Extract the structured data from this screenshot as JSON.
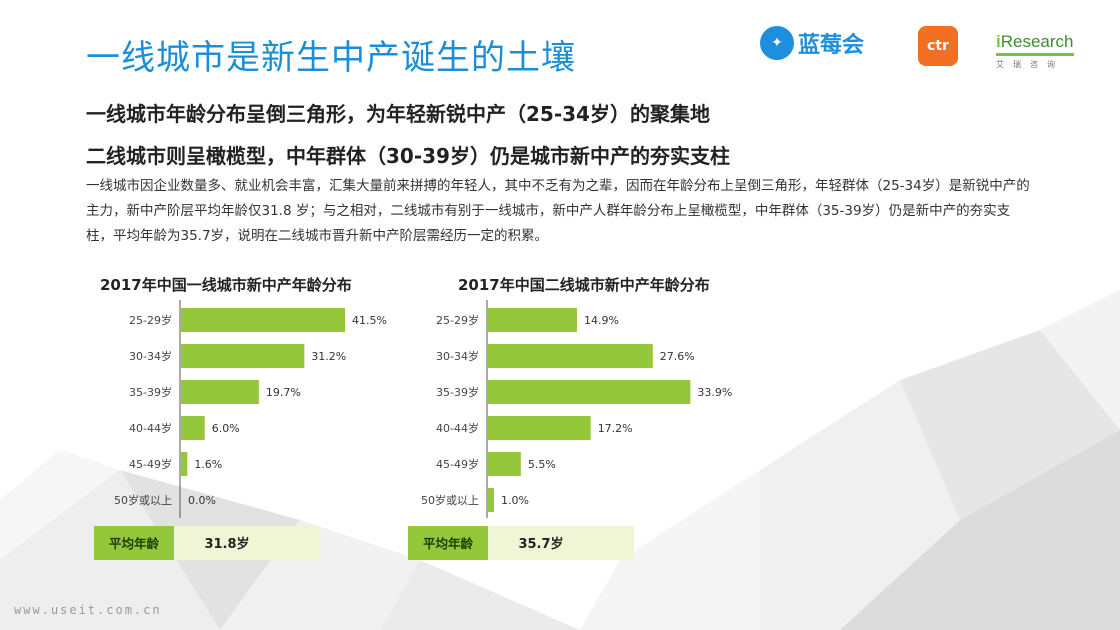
{
  "title": "一线城市是新生中产诞生的土壤",
  "logos": {
    "lanmeihui": "蓝莓会",
    "ctr": "ctr",
    "iresearch_i": "i",
    "iresearch_rest": "Research",
    "iresearch_sub": "艾瑞咨询"
  },
  "heading1": "一线城市年龄分布呈倒三角形，为年轻新锐中产（25-34岁）的聚集地",
  "heading2": "二线城市则呈橄榄型，中年群体（30-39岁）仍是城市新中产的夯实支柱",
  "paragraph": "一线城市因企业数量多、就业机会丰富，汇集大量前来拼搏的年轻人，其中不乏有为之辈，因而在年龄分布上呈倒三角形，年轻群体（25-34岁）是新锐中产的主力，新中产阶层平均年龄仅31.8 岁；与之相对，二线城市有别于一线城市，新中产人群年龄分布上呈橄榄型，中年群体（35-39岁）仍是新中产的夯实支柱，平均年龄为35.7岁，说明在二线城市晋升新中产阶层需经历一定的积累。",
  "watermark": "www.useit.com.cn",
  "chart_data": [
    {
      "type": "bar",
      "orientation": "horizontal",
      "title": "2017年中国一线城市新中产年龄分布",
      "categories": [
        "25-29岁",
        "30-34岁",
        "35-39岁",
        "40-44岁",
        "45-49岁",
        "50岁或以上"
      ],
      "values": [
        41.5,
        31.2,
        19.7,
        6.0,
        1.6,
        0.0
      ],
      "value_labels": [
        "41.5%",
        "31.2%",
        "19.7%",
        "6.0%",
        "1.6%",
        "0.0%"
      ],
      "xlim": [
        0,
        42
      ],
      "color": "#95c73a",
      "grid": false,
      "average_label": "平均年龄",
      "average_value": "31.8岁"
    },
    {
      "type": "bar",
      "orientation": "horizontal",
      "title": "2017年中国二线城市新中产年龄分布",
      "categories": [
        "25-29岁",
        "30-34岁",
        "35-39岁",
        "40-44岁",
        "45-49岁",
        "50岁或以上"
      ],
      "values": [
        14.9,
        27.6,
        33.9,
        17.2,
        5.5,
        1.0
      ],
      "value_labels": [
        "14.9%",
        "27.6%",
        "33.9%",
        "17.2%",
        "5.5%",
        "1.0%"
      ],
      "xlim": [
        0,
        34
      ],
      "color": "#95c73a",
      "grid": false,
      "average_label": "平均年龄",
      "average_value": "35.7岁"
    }
  ]
}
